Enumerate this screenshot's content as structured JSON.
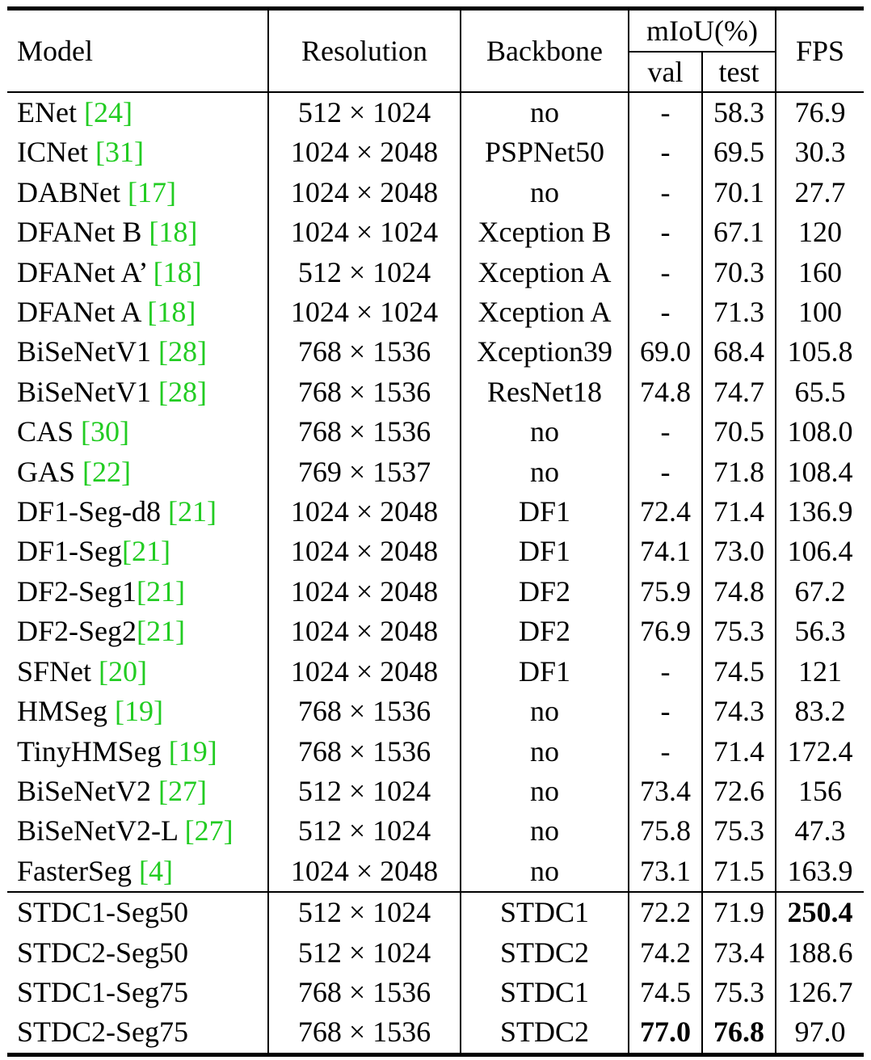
{
  "header": {
    "model": "Model",
    "resolution": "Resolution",
    "backbone": "Backbone",
    "miou": "mIoU(%)",
    "val": "val",
    "test": "test",
    "fps": "FPS"
  },
  "rows": [
    {
      "model": "ENet ",
      "cite": "[24]",
      "post": "",
      "resolution": "512 × 1024",
      "backbone": "no",
      "val": "-",
      "test": "58.3",
      "fps": "76.9"
    },
    {
      "model": "ICNet ",
      "cite": "[31]",
      "post": "",
      "resolution": "1024 × 2048",
      "backbone": "PSPNet50",
      "val": "-",
      "test": "69.5",
      "fps": "30.3"
    },
    {
      "model": "DABNet ",
      "cite": "[17]",
      "post": "",
      "resolution": "1024 × 2048",
      "backbone": "no",
      "val": "-",
      "test": "70.1",
      "fps": "27.7"
    },
    {
      "model": "DFANet B ",
      "cite": "[18]",
      "post": "",
      "resolution": "1024 × 1024",
      "backbone": "Xception B",
      "val": "-",
      "test": "67.1",
      "fps": "120"
    },
    {
      "model": "DFANet A’ ",
      "cite": "[18]",
      "post": "",
      "resolution": "512 × 1024",
      "backbone": "Xception A",
      "val": "-",
      "test": "70.3",
      "fps": "160"
    },
    {
      "model": "DFANet A ",
      "cite": "[18]",
      "post": "",
      "resolution": "1024 × 1024",
      "backbone": "Xception A",
      "val": "-",
      "test": "71.3",
      "fps": "100"
    },
    {
      "model": "BiSeNetV1 ",
      "cite": "[28]",
      "post": "",
      "resolution": "768 × 1536",
      "backbone": "Xception39",
      "val": "69.0",
      "test": "68.4",
      "fps": "105.8"
    },
    {
      "model": "BiSeNetV1 ",
      "cite": "[28]",
      "post": "",
      "resolution": "768 × 1536",
      "backbone": "ResNet18",
      "val": "74.8",
      "test": "74.7",
      "fps": "65.5"
    },
    {
      "model": "CAS ",
      "cite": "[30]",
      "post": "",
      "resolution": "768 × 1536",
      "backbone": "no",
      "val": "-",
      "test": "70.5",
      "fps": "108.0"
    },
    {
      "model": "GAS ",
      "cite": "[22]",
      "post": "",
      "resolution": "769 × 1537",
      "backbone": "no",
      "val": "-",
      "test": "71.8",
      "fps": "108.4"
    },
    {
      "model": "DF1-Seg-d8 ",
      "cite": "[21]",
      "post": "",
      "resolution": "1024 × 2048",
      "backbone": "DF1",
      "val": "72.4",
      "test": "71.4",
      "fps": "136.9"
    },
    {
      "model": "DF1-Seg",
      "cite": "[21]",
      "post": "",
      "resolution": "1024 × 2048",
      "backbone": "DF1",
      "val": "74.1",
      "test": "73.0",
      "fps": "106.4"
    },
    {
      "model": "DF2-Seg1",
      "cite": "[21]",
      "post": "",
      "resolution": "1024 × 2048",
      "backbone": "DF2",
      "val": "75.9",
      "test": "74.8",
      "fps": "67.2"
    },
    {
      "model": "DF2-Seg2",
      "cite": "[21]",
      "post": "",
      "resolution": "1024 × 2048",
      "backbone": "DF2",
      "val": "76.9",
      "test": "75.3",
      "fps": "56.3"
    },
    {
      "model": "SFNet ",
      "cite": "[20]",
      "post": "",
      "resolution": "1024 × 2048",
      "backbone": "DF1",
      "val": "-",
      "test": "74.5",
      "fps": "121"
    },
    {
      "model": "HMSeg ",
      "cite": "[19]",
      "post": "",
      "resolution": "768 × 1536",
      "backbone": "no",
      "val": "-",
      "test": "74.3",
      "fps": "83.2"
    },
    {
      "model": "TinyHMSeg ",
      "cite": "[19]",
      "post": "",
      "resolution": "768 × 1536",
      "backbone": "no",
      "val": "-",
      "test": "71.4",
      "fps": "172.4"
    },
    {
      "model": "BiSeNetV2 ",
      "cite": "[27]",
      "post": "",
      "resolution": "512 × 1024",
      "backbone": "no",
      "val": "73.4",
      "test": "72.6",
      "fps": "156"
    },
    {
      "model": "BiSeNetV2-L ",
      "cite": "[27]",
      "post": "",
      "resolution": "512 × 1024",
      "backbone": "no",
      "val": "75.8",
      "test": "75.3",
      "fps": "47.3"
    },
    {
      "model": "FasterSeg ",
      "cite": "[4]",
      "post": "",
      "resolution": "1024 × 2048",
      "backbone": "no",
      "val": "73.1",
      "test": "71.5",
      "fps": "163.9"
    }
  ],
  "ours": [
    {
      "model": "STDC1-Seg50",
      "resolution": "512 × 1024",
      "backbone": "STDC1",
      "val": "72.2",
      "test": "71.9",
      "fps": "250.4",
      "bold_val": false,
      "bold_test": false,
      "bold_fps": true
    },
    {
      "model": "STDC2-Seg50",
      "resolution": "512 × 1024",
      "backbone": "STDC2",
      "val": "74.2",
      "test": "73.4",
      "fps": "188.6",
      "bold_val": false,
      "bold_test": false,
      "bold_fps": false
    },
    {
      "model": "STDC1-Seg75",
      "resolution": "768 × 1536",
      "backbone": "STDC1",
      "val": "74.5",
      "test": "75.3",
      "fps": "126.7",
      "bold_val": false,
      "bold_test": false,
      "bold_fps": false
    },
    {
      "model": "STDC2-Seg75",
      "resolution": "768 × 1536",
      "backbone": "STDC2",
      "val": "77.0",
      "test": "76.8",
      "fps": "97.0",
      "bold_val": true,
      "bold_test": true,
      "bold_fps": false
    }
  ]
}
